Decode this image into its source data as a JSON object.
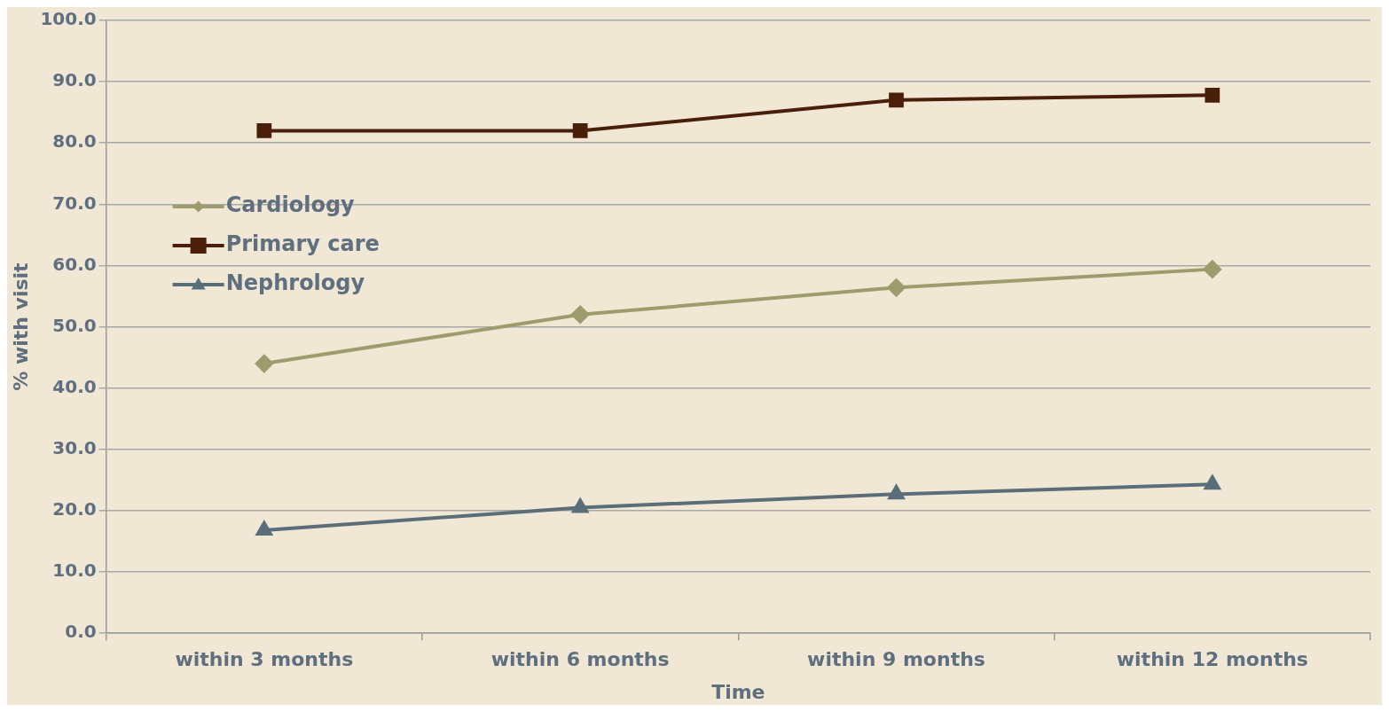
{
  "chart_data": {
    "type": "line",
    "xlabel": "Time",
    "ylabel": "% with visit",
    "categories": [
      "within 3 months",
      "within 6 months",
      "within 9 months",
      "within 12 months"
    ],
    "series": [
      {
        "name": "Cardiology",
        "color": "#9c9c6c",
        "values": [
          44.0,
          52.0,
          56.4,
          59.4
        ],
        "marker": "diamond"
      },
      {
        "name": "Primary care",
        "color": "#4a1f0a",
        "values": [
          82.0,
          82.0,
          87.0,
          87.8
        ],
        "marker": "square"
      },
      {
        "name": "Nephrology",
        "color": "#5a6e7a",
        "values": [
          16.8,
          20.5,
          22.7,
          24.3
        ],
        "marker": "triangle"
      }
    ],
    "ylim": [
      0,
      100
    ],
    "yticks": [
      {
        "value": 0,
        "label": "0.0"
      },
      {
        "value": 10,
        "label": "10.0"
      },
      {
        "value": 20,
        "label": "20.0"
      },
      {
        "value": 30,
        "label": "30.0"
      },
      {
        "value": 40,
        "label": "40.0"
      },
      {
        "value": 50,
        "label": "50.0"
      },
      {
        "value": 60,
        "label": "60.0"
      },
      {
        "value": 70,
        "label": "70.0"
      },
      {
        "value": 80,
        "label": "80.0"
      },
      {
        "value": 90,
        "label": "90.0"
      },
      {
        "value": 100,
        "label": "100.0"
      }
    ],
    "grid": "y",
    "legend": "top left",
    "line_style": "solid"
  }
}
